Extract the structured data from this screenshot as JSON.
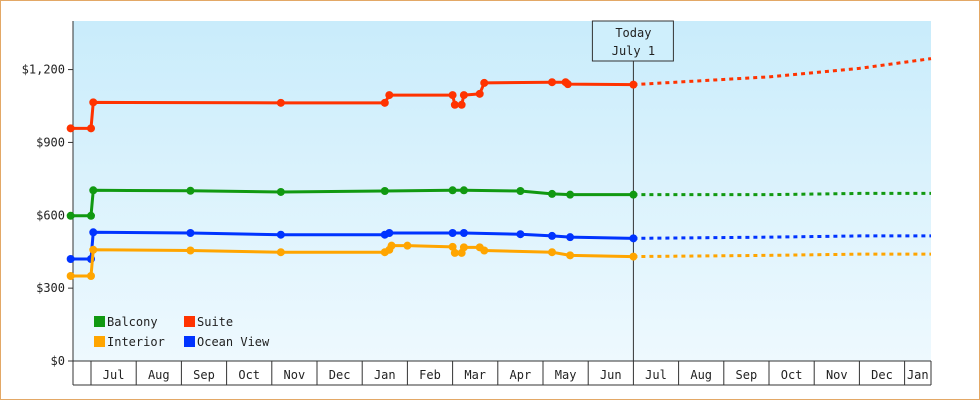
{
  "chart_data": {
    "type": "line",
    "ylim": [
      0,
      1400
    ],
    "y_ticks": [
      {
        "value": 0,
        "label": "$0"
      },
      {
        "value": 300,
        "label": "$300"
      },
      {
        "value": 600,
        "label": "$600"
      },
      {
        "value": 900,
        "label": "$900"
      },
      {
        "value": 1200,
        "label": "$1,200"
      }
    ],
    "x_range": [
      0,
      19.1
    ],
    "x_ticks": [
      "Jul",
      "Aug",
      "Sep",
      "Oct",
      "Nov",
      "Dec",
      "Jan",
      "Feb",
      "Mar",
      "Apr",
      "May",
      "Jun",
      "Jul",
      "Aug",
      "Sep",
      "Oct",
      "Nov",
      "Dec",
      "Jan"
    ],
    "today": {
      "line1": "Today",
      "line2": "July 1",
      "x": 12.0
    },
    "grid": false,
    "legend": {
      "placement": "bottom-left"
    },
    "series": [
      {
        "name": "Suite",
        "color": "#ff3300",
        "history": [
          [
            -0.45,
            958
          ],
          [
            0.0,
            958
          ],
          [
            0.05,
            1065
          ],
          [
            4.2,
            1063
          ],
          [
            6.5,
            1063
          ],
          [
            6.6,
            1095
          ],
          [
            7.2,
            1095
          ],
          [
            7.6,
            1095
          ],
          [
            8.0,
            1095
          ],
          [
            8.05,
            1055
          ],
          [
            8.2,
            1055
          ],
          [
            8.25,
            1095
          ],
          [
            8.6,
            1100
          ],
          [
            8.7,
            1145
          ],
          [
            10.2,
            1148
          ],
          [
            10.5,
            1148
          ],
          [
            10.55,
            1140
          ],
          [
            12.0,
            1138
          ]
        ],
        "markers": [
          [
            -0.45,
            958
          ],
          [
            0.0,
            958
          ],
          [
            0.05,
            1065
          ],
          [
            4.2,
            1063
          ],
          [
            6.5,
            1063
          ],
          [
            6.6,
            1095
          ],
          [
            8.0,
            1095
          ],
          [
            8.05,
            1055
          ],
          [
            8.2,
            1055
          ],
          [
            8.25,
            1095
          ],
          [
            8.6,
            1100
          ],
          [
            8.7,
            1145
          ],
          [
            10.2,
            1148
          ],
          [
            10.5,
            1148
          ],
          [
            10.55,
            1140
          ],
          [
            12.0,
            1138
          ]
        ],
        "forecast": [
          [
            12.0,
            1138
          ],
          [
            15.0,
            1170
          ],
          [
            17.0,
            1205
          ],
          [
            19.1,
            1245
          ]
        ]
      },
      {
        "name": "Balcony",
        "color": "#119911",
        "history": [
          [
            -0.45,
            598
          ],
          [
            0.0,
            598
          ],
          [
            0.05,
            703
          ],
          [
            2.2,
            701
          ],
          [
            4.2,
            696
          ],
          [
            6.5,
            700
          ],
          [
            8.0,
            703
          ],
          [
            8.25,
            703
          ],
          [
            9.5,
            700
          ],
          [
            10.2,
            688
          ],
          [
            10.6,
            685
          ],
          [
            12.0,
            685
          ]
        ],
        "markers": [
          [
            -0.45,
            598
          ],
          [
            0.0,
            598
          ],
          [
            0.05,
            703
          ],
          [
            2.2,
            701
          ],
          [
            4.2,
            696
          ],
          [
            6.5,
            700
          ],
          [
            8.0,
            703
          ],
          [
            8.25,
            703
          ],
          [
            9.5,
            700
          ],
          [
            10.2,
            688
          ],
          [
            10.6,
            685
          ],
          [
            12.0,
            685
          ]
        ],
        "forecast": [
          [
            12.0,
            685
          ],
          [
            15.0,
            685
          ],
          [
            17.0,
            690
          ],
          [
            19.1,
            690
          ]
        ]
      },
      {
        "name": "Ocean View",
        "color": "#0033ff",
        "history": [
          [
            -0.45,
            420
          ],
          [
            0.0,
            420
          ],
          [
            0.05,
            530
          ],
          [
            2.2,
            527
          ],
          [
            4.2,
            520
          ],
          [
            6.5,
            520
          ],
          [
            6.6,
            527
          ],
          [
            8.0,
            527
          ],
          [
            8.25,
            527
          ],
          [
            9.5,
            522
          ],
          [
            10.2,
            515
          ],
          [
            10.6,
            510
          ],
          [
            12.0,
            505
          ]
        ],
        "markers": [
          [
            -0.45,
            420
          ],
          [
            0.0,
            420
          ],
          [
            0.05,
            530
          ],
          [
            2.2,
            527
          ],
          [
            4.2,
            520
          ],
          [
            6.5,
            520
          ],
          [
            6.6,
            527
          ],
          [
            8.0,
            527
          ],
          [
            8.25,
            527
          ],
          [
            9.5,
            522
          ],
          [
            10.2,
            515
          ],
          [
            10.6,
            510
          ],
          [
            12.0,
            505
          ]
        ],
        "forecast": [
          [
            12.0,
            505
          ],
          [
            15.0,
            510
          ],
          [
            17.0,
            515
          ],
          [
            19.1,
            515
          ]
        ]
      },
      {
        "name": "Interior",
        "color": "#ffa500",
        "history": [
          [
            -0.45,
            350
          ],
          [
            0.0,
            350
          ],
          [
            0.05,
            458
          ],
          [
            2.2,
            455
          ],
          [
            4.2,
            448
          ],
          [
            6.5,
            448
          ],
          [
            6.6,
            458
          ],
          [
            6.65,
            475
          ],
          [
            7.0,
            475
          ],
          [
            8.0,
            470
          ],
          [
            8.05,
            445
          ],
          [
            8.2,
            445
          ],
          [
            8.25,
            468
          ],
          [
            8.6,
            468
          ],
          [
            8.7,
            455
          ],
          [
            10.2,
            448
          ],
          [
            10.6,
            435
          ],
          [
            12.0,
            430
          ]
        ],
        "markers": [
          [
            -0.45,
            350
          ],
          [
            0.0,
            350
          ],
          [
            0.05,
            458
          ],
          [
            2.2,
            455
          ],
          [
            4.2,
            448
          ],
          [
            6.5,
            448
          ],
          [
            6.6,
            458
          ],
          [
            6.65,
            475
          ],
          [
            7.0,
            475
          ],
          [
            8.0,
            470
          ],
          [
            8.05,
            445
          ],
          [
            8.2,
            445
          ],
          [
            8.25,
            468
          ],
          [
            8.6,
            468
          ],
          [
            8.7,
            455
          ],
          [
            10.2,
            448
          ],
          [
            10.6,
            435
          ],
          [
            12.0,
            430
          ]
        ],
        "forecast": [
          [
            12.0,
            430
          ],
          [
            15.0,
            435
          ],
          [
            17.0,
            440
          ],
          [
            19.1,
            440
          ]
        ]
      }
    ],
    "legend_rows": [
      [
        "Balcony",
        "Suite"
      ],
      [
        "Interior",
        "Ocean View"
      ]
    ]
  }
}
